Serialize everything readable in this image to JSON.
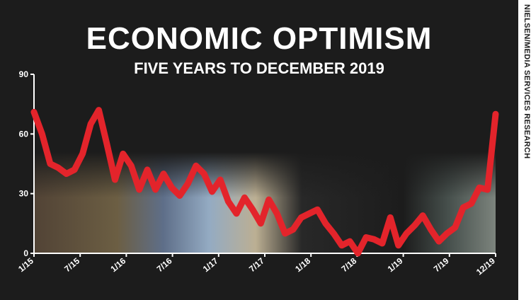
{
  "title": "ECONOMIC OPTIMISM",
  "subtitle": "FIVE YEARS TO DECEMBER 2019",
  "source": "NIELSEN/MEDIA SERVICES RESEARCH",
  "colors": {
    "background": "#1c1c1c",
    "line": "#e3242b",
    "text": "#ffffff"
  },
  "chart_data": {
    "type": "line",
    "title": "ECONOMIC OPTIMISM",
    "subtitle": "FIVE YEARS TO DECEMBER 2019",
    "xlabel": "",
    "ylabel": "",
    "ylim": [
      0,
      90
    ],
    "yticks": [
      "0",
      "30",
      "60",
      "90"
    ],
    "xticks": [
      "1/15",
      "7/15",
      "1/16",
      "7/16",
      "1/17",
      "7/17",
      "1/18",
      "7/18",
      "1/19",
      "7/19",
      "12/19"
    ],
    "grid": false,
    "series": [
      {
        "values": [
          71,
          60,
          45,
          43,
          40,
          42,
          50,
          65,
          72,
          55,
          37,
          50,
          44,
          32,
          42,
          32,
          40,
          33,
          29,
          35,
          44,
          40,
          31,
          37,
          26,
          20,
          28,
          22,
          15,
          27,
          20,
          10,
          12,
          18,
          20,
          22,
          15,
          10,
          4,
          6,
          0,
          8,
          7,
          5,
          18,
          4,
          10,
          14,
          19,
          12,
          6,
          10,
          13,
          23,
          25,
          33,
          32,
          70
        ]
      }
    ]
  }
}
